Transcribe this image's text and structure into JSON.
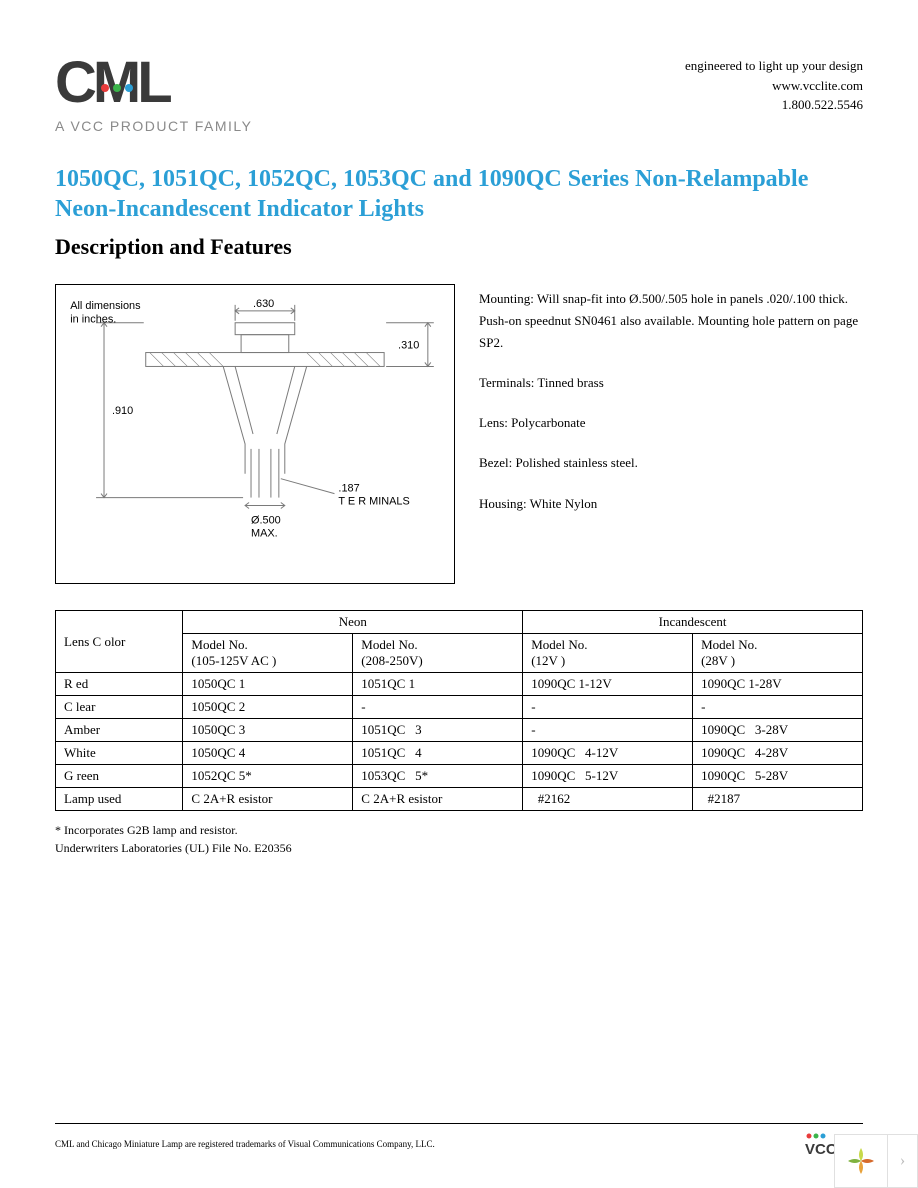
{
  "header": {
    "logo_sub": "A VCC PRODUCT FAMILY",
    "tagline": "engineered to light up your design",
    "website": "www.vcclite.com",
    "phone": "1.800.522.5546"
  },
  "title": "1050QC, 1051QC, 1052QC, 1053QC and 1090QC Series Non-Relampable Neon-Incandescent Indicator Lights",
  "section_heading": "Description and Features",
  "diagram": {
    "note": "All dimensions in inches.",
    "dim_top": ".630",
    "dim_right": ".310",
    "dim_left": ".910",
    "dim_bottom_dia": "Ø.500",
    "dim_bottom_max": "MAX.",
    "terminals_dim": ".187",
    "terminals_label": "T E R MINALS",
    "line_color": "#7a7a7a",
    "text_fontsize": 11,
    "background": "#ffffff"
  },
  "specs": {
    "mounting": "Mounting: Will snap-fit into Ø.500/.505 hole in panels .020/.100 thick. Push-on speednut SN0461 also available. Mounting hole pattern on page SP2.",
    "terminals": "Terminals: Tinned brass",
    "lens": "Lens: Polycarbonate",
    "bezel": "Bezel: Polished stainless steel.",
    "housing": "Housing: White Nylon"
  },
  "table": {
    "col_lens": "Lens C olor",
    "grp_neon": "Neon",
    "grp_incan": "Incandescent",
    "hdr_105": "Model No.\n(105-125V AC )",
    "hdr_208": "Model No.\n(208-250V)",
    "hdr_12": "Model No.\n(12V )",
    "hdr_28": "Model No.\n(28V )",
    "rows": [
      {
        "lens": "R ed",
        "c1": "1050QC 1",
        "c2": "1051QC 1",
        "c3": "1090QC 1-12V",
        "c4": "1090QC 1-28V"
      },
      {
        "lens": "C lear",
        "c1": "1050QC 2",
        "c2": "-",
        "c3": "-",
        "c4": "-"
      },
      {
        "lens": "Amber",
        "c1": "1050QC 3",
        "c2": "1051QC   3",
        "c3": "-",
        "c4": "1090QC   3-28V"
      },
      {
        "lens": "White",
        "c1": "1050QC 4",
        "c2": "1051QC   4",
        "c3": "1090QC   4-12V",
        "c4": "1090QC   4-28V"
      },
      {
        "lens": "G reen",
        "c1": "1052QC 5*",
        "c2": "1053QC   5*",
        "c3": "1090QC   5-12V",
        "c4": "1090QC   5-28V"
      },
      {
        "lens": "Lamp used",
        "c1": "C 2A+R esistor",
        "c2": "C 2A+R esistor",
        "c3": "  #2162",
        "c4": "  #2187"
      }
    ]
  },
  "footnotes": {
    "g2b": "* Incorporates G2B lamp and resistor.",
    "ul": "Underwriters Laboratories (UL) File No. E20356"
  },
  "footer": {
    "trademark": "CML and Chicago Miniature Lamp are registered trademarks of Visual Communications Company, LLC."
  },
  "colors": {
    "title": "#2b9fd6",
    "logo_dots": [
      "#e83b3b",
      "#3bb44a",
      "#2b9fd6"
    ],
    "vcc_dots": [
      "#e83b3b",
      "#3bb44a",
      "#2b9fd6"
    ],
    "widget": [
      "#c7d94a",
      "#7fb23f",
      "#d66a2b",
      "#e8a23b"
    ]
  }
}
